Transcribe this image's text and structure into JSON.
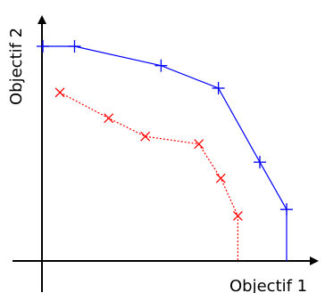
{
  "chart_data": {
    "type": "line",
    "xlabel": "Objectif 1",
    "ylabel": "Objectif 2",
    "grid": false,
    "legend": "none",
    "series": [
      {
        "color": "#0000ff",
        "marker": "plus",
        "line_style": "solid",
        "x": [
          0.0,
          0.13,
          0.485,
          0.72,
          0.89,
          1.0,
          1.0
        ],
        "y": [
          1.0,
          1.0,
          0.91,
          0.805,
          0.46,
          0.24,
          0.0
        ]
      },
      {
        "color": "#ff0000",
        "marker": "x",
        "line_style": "dotted",
        "x": [
          0.07,
          0.27,
          0.42,
          0.64,
          0.73,
          0.8,
          0.8
        ],
        "y": [
          0.785,
          0.665,
          0.58,
          0.545,
          0.385,
          0.21,
          0.0
        ]
      }
    ]
  }
}
